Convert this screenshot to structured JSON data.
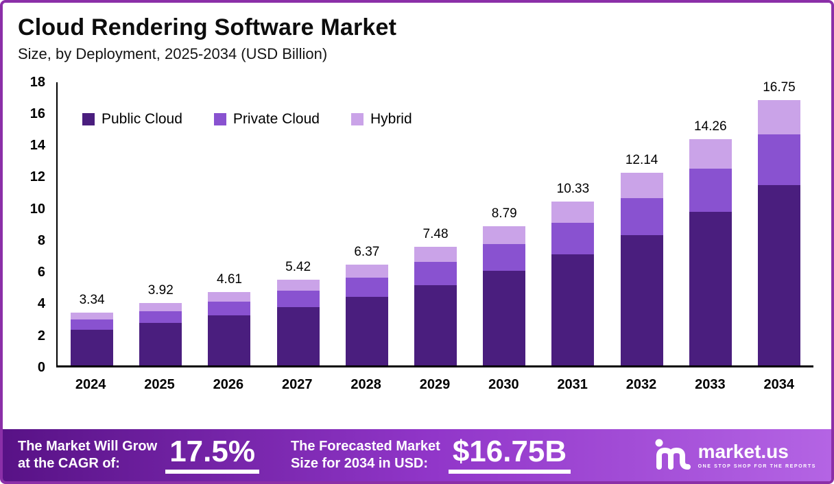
{
  "header": {
    "title": "Cloud Rendering Software Market",
    "subtitle": "Size, by Deployment, 2025-2034 (USD Billion)"
  },
  "colors": {
    "frame_border": "#8b2fa8",
    "public_cloud": "#4a1e7e",
    "private_cloud": "#8952d0",
    "hybrid": "#caa3e8",
    "banner_gradient_left": "#581286",
    "banner_gradient_right": "#b464e4",
    "axis": "#000000"
  },
  "chart_data": {
    "type": "bar",
    "stacked": true,
    "title": "Cloud Rendering Software Market",
    "subtitle": "Size, by Deployment, 2025-2034 (USD Billion)",
    "categories": [
      "2024",
      "2025",
      "2026",
      "2027",
      "2028",
      "2029",
      "2030",
      "2031",
      "2032",
      "2033",
      "2034"
    ],
    "series": [
      {
        "name": "Public Cloud",
        "color": "#4a1e7e",
        "values": [
          2.26,
          2.66,
          3.13,
          3.67,
          4.32,
          5.07,
          5.96,
          7.0,
          8.23,
          9.67,
          11.36
        ]
      },
      {
        "name": "Private Cloud",
        "color": "#8952d0",
        "values": [
          0.64,
          0.75,
          0.89,
          1.04,
          1.22,
          1.44,
          1.69,
          1.98,
          2.33,
          2.74,
          3.22
        ]
      },
      {
        "name": "Hybrid",
        "color": "#caa3e8",
        "values": [
          0.44,
          0.51,
          0.59,
          0.71,
          0.83,
          0.97,
          1.14,
          1.35,
          1.58,
          1.85,
          2.17
        ]
      }
    ],
    "totals": [
      3.34,
      3.92,
      4.61,
      5.42,
      6.37,
      7.48,
      8.79,
      10.33,
      12.14,
      14.26,
      16.75
    ],
    "xlabel": "",
    "ylabel": "",
    "ylim": [
      0,
      18
    ],
    "yticks": [
      0,
      2,
      4,
      6,
      8,
      10,
      12,
      14,
      16,
      18
    ],
    "grid": false,
    "legend_position": "top-left-inside",
    "value_labels": "total-above-bar"
  },
  "banner": {
    "cagr_label_line1": "The Market Will Grow",
    "cagr_label_line2": "at the CAGR of:",
    "cagr_value": "17.5%",
    "forecast_label_line1": "The Forecasted Market",
    "forecast_label_line2": "Size for 2034 in USD:",
    "forecast_value": "$16.75B",
    "logo_text": "market.us",
    "logo_tagline": "ONE STOP SHOP FOR THE REPORTS"
  }
}
